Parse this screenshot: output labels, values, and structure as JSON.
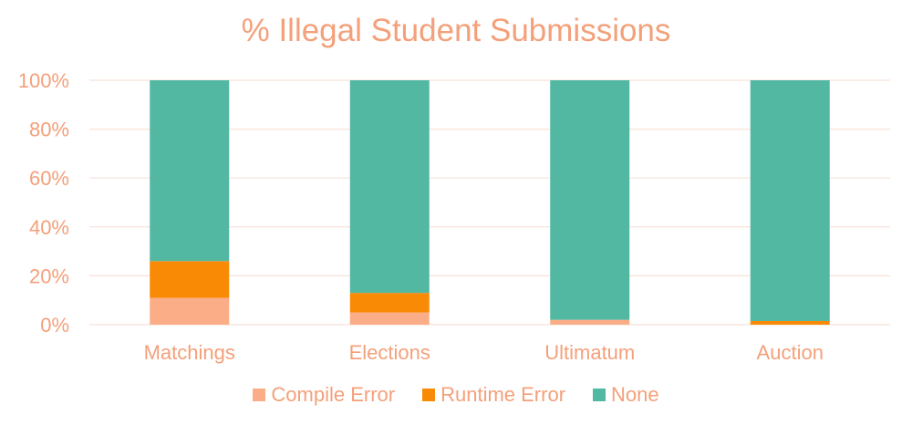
{
  "chart_data": {
    "type": "bar",
    "stacked": true,
    "title": "% Illegal Student Submissions",
    "categories": [
      "Matchings",
      "Elections",
      "Ultimatum",
      "Auction"
    ],
    "series": [
      {
        "name": "Compile Error",
        "color": "#fbad87",
        "values": [
          11,
          5,
          2,
          0
        ]
      },
      {
        "name": "Runtime Error",
        "color": "#f98a06",
        "values": [
          15,
          8,
          0,
          1.5
        ]
      },
      {
        "name": "None",
        "color": "#52b8a2",
        "values": [
          74,
          87,
          98,
          98.5
        ]
      }
    ],
    "yticks": [
      "0%",
      "20%",
      "40%",
      "60%",
      "80%",
      "100%"
    ],
    "ylim": [
      0,
      100
    ],
    "grid": true,
    "legend": "bottom"
  }
}
